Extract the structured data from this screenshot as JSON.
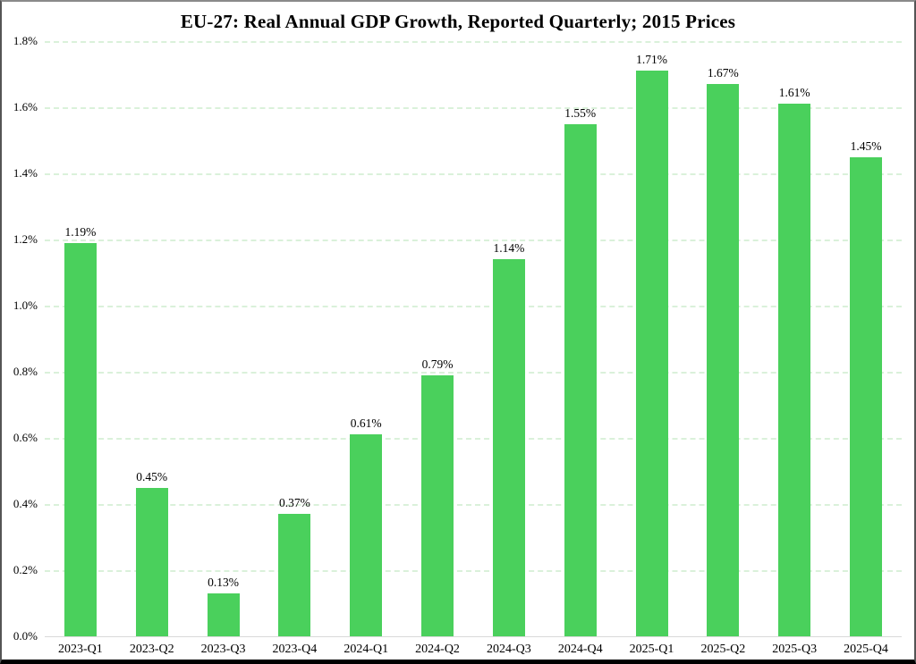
{
  "title": "EU-27: Real Annual GDP Growth, Reported Quarterly; 2015 Prices",
  "chart_data": {
    "type": "bar",
    "title": "EU-27: Real Annual GDP Growth, Reported Quarterly; 2015 Prices",
    "categories": [
      "2023-Q1",
      "2023-Q2",
      "2023-Q3",
      "2023-Q4",
      "2024-Q1",
      "2024-Q2",
      "2024-Q3",
      "2024-Q4",
      "2025-Q1",
      "2025-Q2",
      "2025-Q3",
      "2025-Q4"
    ],
    "values": [
      1.19,
      0.45,
      0.13,
      0.37,
      0.61,
      0.79,
      1.14,
      1.55,
      1.71,
      1.67,
      1.61,
      1.45
    ],
    "data_labels": [
      "1.19%",
      "0.45%",
      "0.13%",
      "0.37%",
      "0.61%",
      "0.79%",
      "1.14%",
      "1.55%",
      "1.71%",
      "1.67%",
      "1.61%",
      "1.45%"
    ],
    "xlabel": "",
    "ylabel": "",
    "ylim": [
      0,
      1.8
    ],
    "ytick_step": 0.2,
    "ytick_labels": [
      "0.0%",
      "0.2%",
      "0.4%",
      "0.6%",
      "0.8%",
      "1.0%",
      "1.2%",
      "1.4%",
      "1.6%",
      "1.8%"
    ],
    "grid": "horizontal-dashed",
    "legend": "none",
    "colors": {
      "bar": "#4ad05c",
      "gridline": "#daf1da",
      "axis_line": "#d9d9d9",
      "text": "#000000",
      "background": "#ffffff"
    }
  }
}
